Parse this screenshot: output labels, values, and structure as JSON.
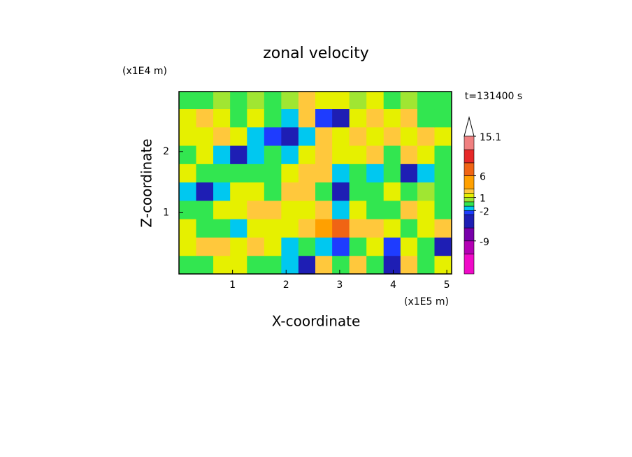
{
  "chart_data": {
    "type": "contour",
    "title": "zonal velocity",
    "time_label": "t=131400 s",
    "xlabel": "X-coordinate",
    "ylabel": "Z-coordinate",
    "x_unit": "(x1E5 m)",
    "y_unit": "(x1E4 m)",
    "xlim": [
      0,
      5.09
    ],
    "ylim": [
      0,
      2.98
    ],
    "xticks": [
      1,
      2,
      3,
      4,
      5
    ],
    "yticks": [
      1,
      2
    ],
    "x": [
      0.16,
      0.48,
      0.8,
      1.11,
      1.43,
      1.75,
      2.07,
      2.39,
      2.7,
      3.02,
      3.34,
      3.66,
      3.98,
      4.29,
      4.61,
      4.93
    ],
    "y": [
      0.15,
      0.45,
      0.75,
      1.05,
      1.35,
      1.65,
      1.95,
      2.25,
      2.55,
      2.85
    ],
    "values": [
      [
        -0.5,
        -0.5,
        1.5,
        1.5,
        -0.5,
        -0.5,
        -1.5,
        -3.5,
        2.5,
        -0.5,
        2.5,
        -0.5,
        -3.5,
        2.5,
        -0.5,
        1.5
      ],
      [
        1.5,
        2.5,
        2.5,
        1.5,
        2.5,
        1.5,
        -1.5,
        -0.5,
        -1.5,
        -2.5,
        -0.5,
        1.5,
        -2.5,
        1.5,
        -0.5,
        -3.5
      ],
      [
        1.5,
        -0.5,
        -0.5,
        -1.5,
        1.5,
        1.5,
        1.5,
        2.5,
        4.5,
        7,
        2.5,
        2.5,
        1.5,
        -0.5,
        1.5,
        2.5
      ],
      [
        -0.5,
        -0.5,
        1.5,
        1.5,
        2.5,
        2.5,
        1.5,
        1.5,
        2.5,
        -1.5,
        1.5,
        -0.5,
        -0.5,
        2.5,
        1.5,
        -0.5
      ],
      [
        -1.5,
        -3.5,
        -1.5,
        1.5,
        1.5,
        -0.5,
        2.5,
        2.5,
        -0.5,
        -3.5,
        -0.5,
        -0.5,
        1.5,
        -0.5,
        0.5,
        -0.5
      ],
      [
        1.5,
        -0.5,
        -0.5,
        -0.5,
        -0.5,
        -0.5,
        1.5,
        2.5,
        2.5,
        -1.5,
        -0.5,
        -1.5,
        -0.5,
        -3.5,
        -1.5,
        -0.5
      ],
      [
        -0.5,
        1.5,
        -1.5,
        -3.5,
        -1.5,
        -0.5,
        -1.5,
        1.5,
        2.5,
        1.5,
        1.5,
        2.5,
        -0.5,
        2.5,
        1.5,
        -0.5
      ],
      [
        1.5,
        1.5,
        2.5,
        1.5,
        -1.5,
        -2.5,
        -3.5,
        -1.5,
        2.5,
        1.5,
        2.5,
        1.5,
        2.5,
        1.5,
        2.5,
        1.5
      ],
      [
        1.5,
        2.5,
        1.5,
        -0.5,
        1.5,
        -0.5,
        -1.5,
        2.5,
        -2.5,
        -3.5,
        1.5,
        2.5,
        1.5,
        2.5,
        -0.5,
        -0.5
      ],
      [
        -0.5,
        -0.5,
        0.5,
        -0.5,
        0.5,
        -0.5,
        0.5,
        2.5,
        1.5,
        1.5,
        0.5,
        1.5,
        -0.5,
        0.5,
        -0.5,
        -0.5
      ]
    ],
    "colorbar": {
      "lim": [
        -16.6,
        15.1
      ],
      "levels": [
        -16.6,
        -12,
        -9,
        -6,
        -3,
        -2,
        -1,
        0,
        1,
        2,
        3,
        6,
        9,
        12,
        15.1
      ],
      "colors": [
        "#f00ac8",
        "#b400b4",
        "#7800aa",
        "#1e1eb4",
        "#1e3cff",
        "#00c8f0",
        "#32e650",
        "#a0e632",
        "#e6f000",
        "#ffc83c",
        "#ffa000",
        "#f06414",
        "#e62828",
        "#f08080"
      ],
      "over_color": "#f5b4b4",
      "ticks": [
        -9,
        -2,
        1,
        6,
        15.1
      ]
    }
  }
}
